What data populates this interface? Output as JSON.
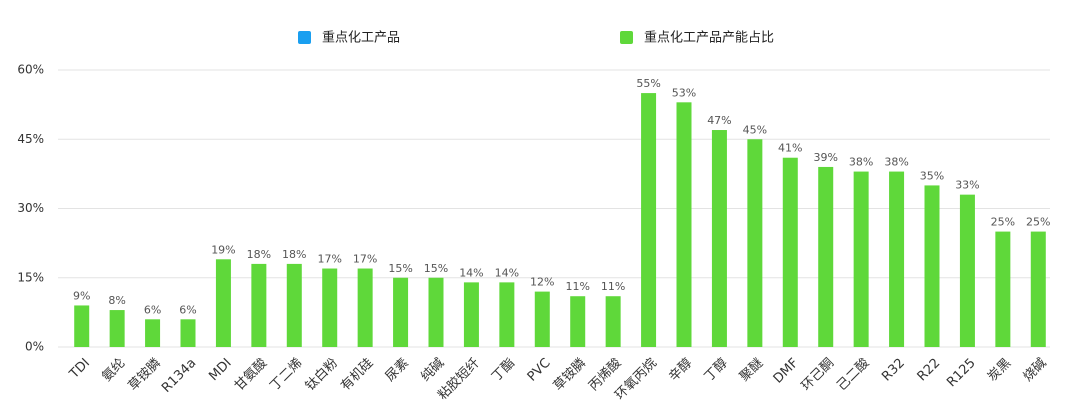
{
  "chart_data": {
    "type": "bar",
    "categories": [
      "TDI",
      "氨纶",
      "草铵膦",
      "R134a",
      "MDI",
      "甘氨酸",
      "丁二烯",
      "钛白粉",
      "有机硅",
      "尿素",
      "纯碱",
      "粘胶短纤",
      "丁酯",
      "PVC",
      "草铵膦",
      "丙烯酸",
      "环氧丙烷",
      "辛醇",
      "丁醇",
      "聚醚",
      "DMF",
      "环己酮",
      "己二酸",
      "R32",
      "R22",
      "R125",
      "炭黑",
      "烧碱"
    ],
    "series": [
      {
        "name": "重点化工产品",
        "color": "#1a9ff0",
        "values": [
          null,
          null,
          null,
          null,
          null,
          null,
          null,
          null,
          null,
          null,
          null,
          null,
          null,
          null,
          null,
          null,
          null,
          null,
          null,
          null,
          null,
          null,
          null,
          null,
          null,
          null,
          null,
          null
        ]
      },
      {
        "name": "重点化工产品产能占比",
        "color": "#5fd83a",
        "values": [
          9,
          8,
          6,
          6,
          19,
          18,
          18,
          17,
          17,
          15,
          15,
          14,
          14,
          12,
          11,
          11,
          55,
          53,
          47,
          45,
          41,
          39,
          38,
          38,
          35,
          33,
          25,
          25
        ],
        "value_labels": [
          "9%",
          "8%",
          "6%",
          "6%",
          "19%",
          "18%",
          "18%",
          "17%",
          "17%",
          "15%",
          "15%",
          "14%",
          "14%",
          "12%",
          "11%",
          "11%",
          "55%",
          "53%",
          "47%",
          "45%",
          "41%",
          "39%",
          "38%",
          "38%",
          "35%",
          "33%",
          "25%",
          "25%"
        ]
      }
    ],
    "ylim": [
      0,
      60
    ],
    "yticks": [
      {
        "value": 0,
        "label": "0%"
      },
      {
        "value": 15,
        "label": "15%"
      },
      {
        "value": 30,
        "label": "30%"
      },
      {
        "value": 45,
        "label": "45%"
      },
      {
        "value": 60,
        "label": "60%"
      }
    ],
    "grid": true
  }
}
